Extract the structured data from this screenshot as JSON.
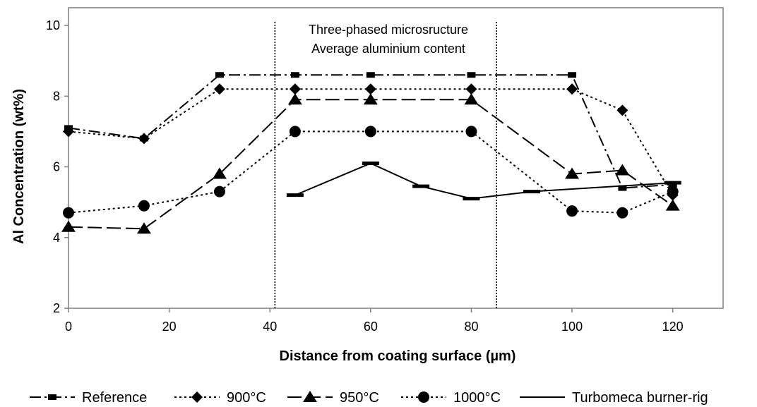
{
  "chart_data": {
    "type": "line",
    "title": "",
    "xlabel": "Distance from coating surface (µm)",
    "ylabel": "Al Concentration (wt%)",
    "xlim": [
      0,
      130
    ],
    "ylim": [
      2,
      10.5
    ],
    "xticks": [
      0,
      20,
      40,
      60,
      80,
      100,
      120
    ],
    "yticks": [
      2,
      4,
      6,
      8,
      10
    ],
    "grid": false,
    "legend_position": "bottom",
    "annotation": {
      "lines": [
        "Three-phased microsructure",
        "Average aluminium content"
      ],
      "region_x": [
        41,
        85
      ]
    },
    "series": [
      {
        "name": "Reference",
        "marker": "square",
        "dash": "dash-dot",
        "x": [
          0,
          15,
          30,
          45,
          60,
          80,
          100,
          110,
          120
        ],
        "y": [
          7.1,
          6.8,
          8.6,
          8.6,
          8.6,
          8.6,
          8.6,
          5.4,
          5.5
        ]
      },
      {
        "name": "900°C",
        "marker": "diamond",
        "dash": "dotted",
        "x": [
          0,
          15,
          30,
          45,
          60,
          80,
          100,
          110,
          120
        ],
        "y": [
          7.0,
          6.8,
          8.2,
          8.2,
          8.2,
          8.2,
          8.2,
          7.6,
          5.2
        ]
      },
      {
        "name": "950°C",
        "marker": "triangle",
        "dash": "long-dash",
        "x": [
          0,
          15,
          30,
          45,
          60,
          80,
          100,
          110,
          120
        ],
        "y": [
          4.3,
          4.25,
          5.8,
          7.9,
          7.9,
          7.9,
          5.8,
          5.9,
          4.9
        ]
      },
      {
        "name": "1000°C",
        "marker": "circle",
        "dash": "dotted",
        "x": [
          0,
          15,
          30,
          45,
          60,
          80,
          100,
          110,
          120
        ],
        "y": [
          4.7,
          4.9,
          5.3,
          7.0,
          7.0,
          7.0,
          4.75,
          4.7,
          5.3
        ]
      },
      {
        "name": "Turbomeca burner-rig",
        "marker": "dash",
        "dash": "solid",
        "x": [
          45,
          60,
          70,
          80,
          92,
          120
        ],
        "y": [
          5.2,
          6.1,
          5.45,
          5.1,
          5.3,
          5.55
        ]
      }
    ]
  }
}
